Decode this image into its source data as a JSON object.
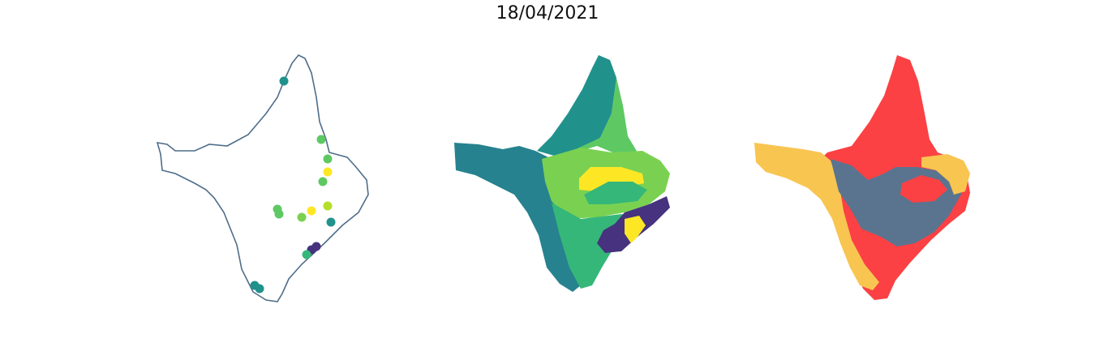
{
  "title": "18/04/2021",
  "colors": {
    "outline": "#4f6d8a",
    "teal": "#21918c",
    "darkteal": "#26828e",
    "green": "#5ec962",
    "lightgreen": "#7ad151",
    "midgreen": "#35b779",
    "yellow": "#fde725",
    "yellowgreen": "#b5de2b",
    "purple": "#46327e",
    "red": "#fb4143",
    "gold": "#f8c551",
    "slate": "#5a7490"
  },
  "panels": [
    {
      "name": "station-points",
      "style": "outline with colored station markers"
    },
    {
      "name": "basin-values",
      "style": "choropleth viridis"
    },
    {
      "name": "basin-categories",
      "style": "choropleth categorical"
    }
  ],
  "stations": [
    {
      "color": "teal"
    },
    {
      "color": "green"
    },
    {
      "color": "green"
    },
    {
      "color": "yellow"
    },
    {
      "color": "green"
    },
    {
      "color": "yellowgreen"
    },
    {
      "color": "teal"
    },
    {
      "color": "green"
    },
    {
      "color": "green"
    },
    {
      "color": "lightgreen"
    },
    {
      "color": "yellow"
    },
    {
      "color": "purple"
    },
    {
      "color": "purple"
    },
    {
      "color": "midgreen"
    },
    {
      "color": "teal"
    },
    {
      "color": "teal"
    }
  ]
}
